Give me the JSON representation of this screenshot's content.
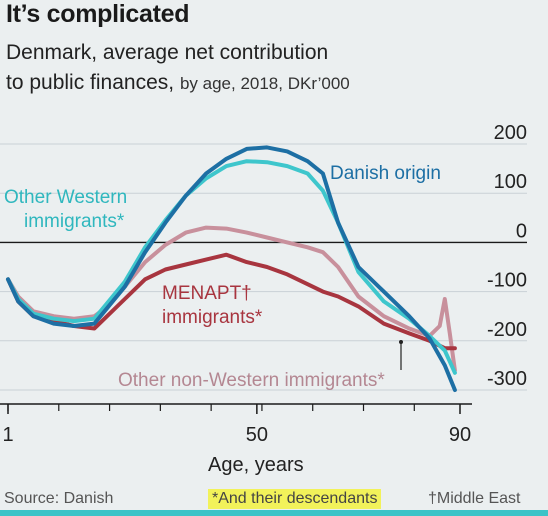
{
  "header": {
    "title": "It’s complicated",
    "subtitle_line1": "Denmark, average net contribution",
    "subtitle_line2_main": "to public finances,",
    "subtitle_line2_small": "by age, 2018, DKr’000"
  },
  "footer": {
    "source": "Source: Danish",
    "note_descendants": "*And their descendants",
    "note_middle_east": "†Middle East"
  },
  "chart_data": {
    "type": "line",
    "title": "It’s complicated",
    "subtitle": "Denmark, average net contribution to public finances, by age, 2018, DKr’000",
    "xlabel": "Age, years",
    "ylabel": "",
    "xlim": [
      1,
      90
    ],
    "ylim": [
      -300,
      200
    ],
    "x_ticks": [
      "1",
      "50",
      "90"
    ],
    "y_ticks": [
      "200",
      "100",
      "0",
      "-100",
      "-200",
      "-300"
    ],
    "grid": true,
    "series": [
      {
        "name": "Danish origin",
        "color": "#1d6fa4",
        "points": [
          [
            1,
            -75
          ],
          [
            3,
            -120
          ],
          [
            6,
            -150
          ],
          [
            10,
            -165
          ],
          [
            14,
            -170
          ],
          [
            18,
            -165
          ],
          [
            20,
            -140
          ],
          [
            24,
            -90
          ],
          [
            28,
            -20
          ],
          [
            32,
            40
          ],
          [
            36,
            95
          ],
          [
            40,
            140
          ],
          [
            44,
            170
          ],
          [
            48,
            190
          ],
          [
            52,
            193
          ],
          [
            56,
            185
          ],
          [
            60,
            165
          ],
          [
            63,
            140
          ],
          [
            66,
            40
          ],
          [
            70,
            -50
          ],
          [
            75,
            -100
          ],
          [
            80,
            -150
          ],
          [
            84,
            -195
          ],
          [
            87,
            -250
          ],
          [
            89,
            -300
          ]
        ]
      },
      {
        "name": "Other Western immigrants*",
        "color": "#3ec6cc",
        "points": [
          [
            1,
            -75
          ],
          [
            3,
            -115
          ],
          [
            6,
            -145
          ],
          [
            10,
            -155
          ],
          [
            14,
            -160
          ],
          [
            18,
            -155
          ],
          [
            20,
            -130
          ],
          [
            24,
            -80
          ],
          [
            28,
            -10
          ],
          [
            32,
            45
          ],
          [
            36,
            95
          ],
          [
            40,
            130
          ],
          [
            44,
            155
          ],
          [
            48,
            165
          ],
          [
            52,
            163
          ],
          [
            56,
            155
          ],
          [
            60,
            140
          ],
          [
            63,
            105
          ],
          [
            66,
            40
          ],
          [
            70,
            -60
          ],
          [
            75,
            -120
          ],
          [
            80,
            -155
          ],
          [
            84,
            -190
          ],
          [
            87,
            -220
          ],
          [
            89,
            -265
          ]
        ]
      },
      {
        "name": "Other non-Western immigrants*",
        "color": "#c8909c",
        "points": [
          [
            1,
            -75
          ],
          [
            3,
            -110
          ],
          [
            6,
            -140
          ],
          [
            10,
            -150
          ],
          [
            14,
            -155
          ],
          [
            18,
            -150
          ],
          [
            20,
            -135
          ],
          [
            24,
            -90
          ],
          [
            28,
            -40
          ],
          [
            32,
            -5
          ],
          [
            36,
            20
          ],
          [
            40,
            30
          ],
          [
            44,
            28
          ],
          [
            48,
            20
          ],
          [
            52,
            10
          ],
          [
            56,
            0
          ],
          [
            60,
            -10
          ],
          [
            63,
            -20
          ],
          [
            66,
            -50
          ],
          [
            70,
            -110
          ],
          [
            75,
            -150
          ],
          [
            80,
            -175
          ],
          [
            84,
            -190
          ],
          [
            86,
            -170
          ],
          [
            87,
            -115
          ],
          [
            88,
            -185
          ],
          [
            89,
            -260
          ]
        ]
      },
      {
        "name": "MENAPT† immigrants*",
        "color": "#a8353f",
        "points": [
          [
            1,
            -75
          ],
          [
            3,
            -120
          ],
          [
            6,
            -150
          ],
          [
            10,
            -160
          ],
          [
            14,
            -170
          ],
          [
            18,
            -175
          ],
          [
            20,
            -155
          ],
          [
            24,
            -115
          ],
          [
            28,
            -75
          ],
          [
            32,
            -55
          ],
          [
            36,
            -45
          ],
          [
            40,
            -35
          ],
          [
            44,
            -25
          ],
          [
            48,
            -40
          ],
          [
            52,
            -50
          ],
          [
            56,
            -65
          ],
          [
            60,
            -85
          ],
          [
            63,
            -100
          ],
          [
            66,
            -110
          ],
          [
            70,
            -130
          ],
          [
            75,
            -165
          ],
          [
            80,
            -185
          ],
          [
            84,
            -200
          ],
          [
            87,
            -215
          ],
          [
            89,
            -215
          ]
        ]
      }
    ],
    "annotations": [
      {
        "text": "Danish origin",
        "series": "Danish origin"
      },
      {
        "text": "Other Western",
        "text2": "immigrants*",
        "series": "Other Western immigrants*"
      },
      {
        "text": "MENAPT†",
        "text2": "immigrants*",
        "series": "MENAPT† immigrants*"
      },
      {
        "text": "Other non-Western immigrants*",
        "series": "Other non-Western immigrants*"
      }
    ]
  }
}
